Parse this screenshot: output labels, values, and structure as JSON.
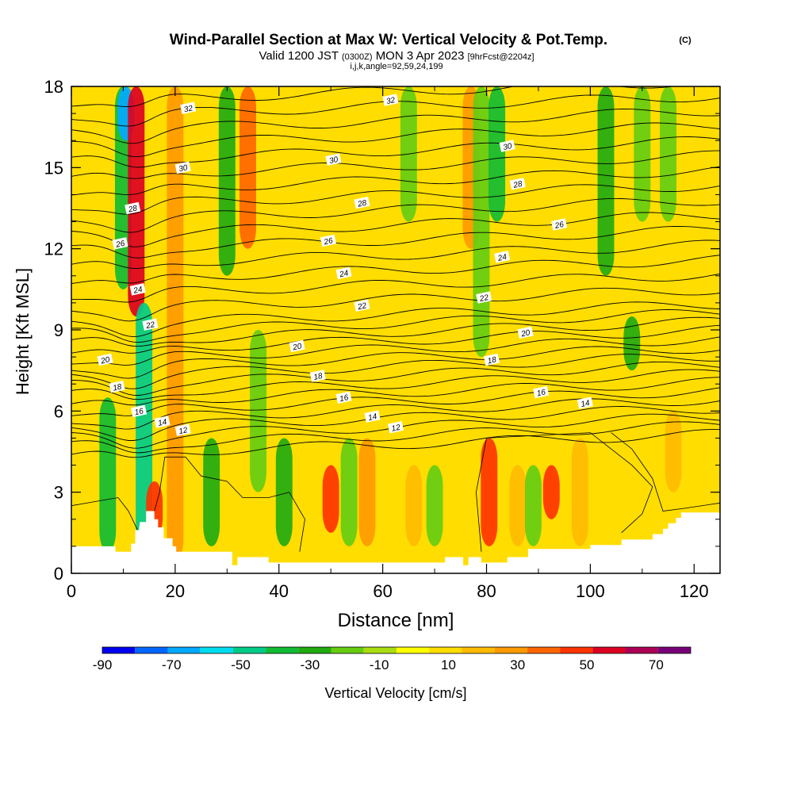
{
  "chart_data": {
    "type": "heatmap",
    "title": "Wind-Parallel Section at Max W: Vertical Velocity & Pot.Temp.",
    "title_mark": "(C)",
    "subtitle": {
      "valid": "Valid 1200 JST",
      "utc": "(0300Z)",
      "date": "MON 3 Apr 2023",
      "fcst": "[9hrFcst@2204z]"
    },
    "params": "i,j,k,angle=92,59,24,199",
    "xlabel": "Distance [nm]",
    "ylabel": "Height [Kft MSL]",
    "xlim": [
      0,
      125
    ],
    "ylim": [
      0,
      18
    ],
    "xticks": [
      "0",
      "20",
      "40",
      "60",
      "80",
      "100",
      "120"
    ],
    "yticks": [
      "0",
      "3",
      "6",
      "9",
      "12",
      "15",
      "18"
    ],
    "background_w": 5,
    "w_columns": [
      {
        "x": 7,
        "w": -35,
        "low": 0.8,
        "high": 6.5
      },
      {
        "x": 10,
        "w": -40,
        "low": 10.5,
        "high": 18
      },
      {
        "x": 10.5,
        "w": -65,
        "low": 16,
        "high": 18
      },
      {
        "x": 12.5,
        "w": 55,
        "low": 9.5,
        "high": 18
      },
      {
        "x": 14,
        "w": -45,
        "low": 1,
        "high": 10
      },
      {
        "x": 16,
        "w": 45,
        "low": 1.3,
        "high": 3.4
      },
      {
        "x": 20,
        "w": 25,
        "low": 0.5,
        "high": 18
      },
      {
        "x": 27,
        "w": -30,
        "low": 1,
        "high": 5
      },
      {
        "x": 30,
        "w": -25,
        "low": 11,
        "high": 18
      },
      {
        "x": 34,
        "w": 35,
        "low": 12,
        "high": 18
      },
      {
        "x": 36,
        "w": -15,
        "low": 3,
        "high": 9
      },
      {
        "x": 41,
        "w": -25,
        "low": 1,
        "high": 5
      },
      {
        "x": 50,
        "w": 45,
        "low": 1.5,
        "high": 4
      },
      {
        "x": 53.5,
        "w": -15,
        "low": 1,
        "high": 5
      },
      {
        "x": 57,
        "w": 25,
        "low": 1,
        "high": 5
      },
      {
        "x": 65,
        "w": -15,
        "low": 13,
        "high": 18
      },
      {
        "x": 66,
        "w": 15,
        "low": 1,
        "high": 4
      },
      {
        "x": 70,
        "w": -15,
        "low": 1,
        "high": 4
      },
      {
        "x": 77,
        "w": 25,
        "low": 12,
        "high": 18
      },
      {
        "x": 79,
        "w": -20,
        "low": 8,
        "high": 18
      },
      {
        "x": 80.5,
        "w": 45,
        "low": 1,
        "high": 5
      },
      {
        "x": 82,
        "w": -35,
        "low": 13,
        "high": 18
      },
      {
        "x": 86,
        "w": 15,
        "low": 1,
        "high": 4
      },
      {
        "x": 89,
        "w": -15,
        "low": 1,
        "high": 4
      },
      {
        "x": 92.5,
        "w": 45,
        "low": 2,
        "high": 4
      },
      {
        "x": 98,
        "w": 15,
        "low": 1,
        "high": 5
      },
      {
        "x": 103,
        "w": -25,
        "low": 11,
        "high": 18
      },
      {
        "x": 108,
        "w": -25,
        "low": 7.5,
        "high": 9.5
      },
      {
        "x": 110,
        "w": -20,
        "low": 13,
        "high": 18
      },
      {
        "x": 115,
        "w": -15,
        "low": 13,
        "high": 18
      },
      {
        "x": 116,
        "w": 15,
        "low": 3,
        "high": 6
      }
    ],
    "theta_labels": [
      {
        "value": "32",
        "x": 22.5,
        "y": 17.2
      },
      {
        "value": "32",
        "x": 61.5,
        "y": 17.5
      },
      {
        "value": "30",
        "x": 21.5,
        "y": 15
      },
      {
        "value": "30",
        "x": 50.5,
        "y": 15.3
      },
      {
        "value": "30",
        "x": 84,
        "y": 15.8
      },
      {
        "value": "28",
        "x": 11.8,
        "y": 13.5
      },
      {
        "value": "28",
        "x": 56,
        "y": 13.7
      },
      {
        "value": "28",
        "x": 86,
        "y": 14.4
      },
      {
        "value": "26",
        "x": 9.4,
        "y": 12.2
      },
      {
        "value": "26",
        "x": 49.5,
        "y": 12.3
      },
      {
        "value": "26",
        "x": 94,
        "y": 12.9
      },
      {
        "value": "24",
        "x": 12.8,
        "y": 10.5
      },
      {
        "value": "24",
        "x": 52.5,
        "y": 11.1
      },
      {
        "value": "24",
        "x": 83,
        "y": 11.7
      },
      {
        "value": "22",
        "x": 15.2,
        "y": 9.2
      },
      {
        "value": "22",
        "x": 56,
        "y": 9.9
      },
      {
        "value": "22",
        "x": 79.5,
        "y": 10.2
      },
      {
        "value": "20",
        "x": 6.5,
        "y": 7.9
      },
      {
        "value": "20",
        "x": 43.5,
        "y": 8.4
      },
      {
        "value": "20",
        "x": 87.5,
        "y": 8.9
      },
      {
        "value": "18",
        "x": 8.8,
        "y": 6.9
      },
      {
        "value": "18",
        "x": 47.5,
        "y": 7.3
      },
      {
        "value": "18",
        "x": 81,
        "y": 7.9
      },
      {
        "value": "16",
        "x": 13,
        "y": 6
      },
      {
        "value": "16",
        "x": 52.5,
        "y": 6.5
      },
      {
        "value": "16",
        "x": 90.5,
        "y": 6.7
      },
      {
        "value": "14",
        "x": 17.5,
        "y": 5.6
      },
      {
        "value": "14",
        "x": 58,
        "y": 5.8
      },
      {
        "value": "14",
        "x": 99,
        "y": 6.3
      },
      {
        "value": "12",
        "x": 21.5,
        "y": 5.3
      },
      {
        "value": "12",
        "x": 62.5,
        "y": 5.4
      }
    ],
    "terrain": [
      [
        0,
        1
      ],
      [
        8.5,
        1
      ],
      [
        8.5,
        0.8
      ],
      [
        11.5,
        0.8
      ],
      [
        11.5,
        1.1
      ],
      [
        12.3,
        1.1
      ],
      [
        12.3,
        1.6
      ],
      [
        13,
        1.6
      ],
      [
        13.2,
        1.9
      ],
      [
        14.4,
        1.9
      ],
      [
        14.4,
        2.3
      ],
      [
        16,
        2.3
      ],
      [
        16,
        2.0
      ],
      [
        16.7,
        2.0
      ],
      [
        16.7,
        1.7
      ],
      [
        17.8,
        1.7
      ],
      [
        17.8,
        1.3
      ],
      [
        19.5,
        1.3
      ],
      [
        19.5,
        1.0
      ],
      [
        20.2,
        1.0
      ],
      [
        20.2,
        0.8
      ],
      [
        25,
        0.8
      ],
      [
        30,
        0.8
      ],
      [
        31,
        0.8
      ],
      [
        31,
        0.3
      ],
      [
        32,
        0.3
      ],
      [
        32,
        0.6
      ],
      [
        38,
        0.6
      ],
      [
        38,
        0.4
      ],
      [
        42,
        0.4
      ],
      [
        60,
        0.4
      ],
      [
        72,
        0.4
      ],
      [
        72,
        0.6
      ],
      [
        75.5,
        0.6
      ],
      [
        75.5,
        0.3
      ],
      [
        76.5,
        0.3
      ],
      [
        76.5,
        0.6
      ],
      [
        79,
        0.6
      ],
      [
        79,
        0.4
      ],
      [
        84,
        0.4
      ],
      [
        84,
        0.6
      ],
      [
        88,
        0.6
      ],
      [
        88,
        0.9
      ],
      [
        100,
        0.9
      ],
      [
        100,
        1.05
      ],
      [
        106,
        1.05
      ],
      [
        106,
        1.25
      ],
      [
        112,
        1.25
      ],
      [
        112,
        1.45
      ],
      [
        114,
        1.45
      ],
      [
        114,
        1.65
      ],
      [
        115,
        1.65
      ],
      [
        115,
        1.85
      ],
      [
        116.5,
        1.85
      ],
      [
        116.5,
        2.05
      ],
      [
        117.5,
        2.05
      ],
      [
        117.5,
        2.25
      ],
      [
        125,
        2.25
      ]
    ],
    "colorbar": {
      "label": "Vertical Velocity [cm/s]",
      "ticks": [
        "-90",
        "-70",
        "-50",
        "-30",
        "-10",
        "10",
        "30",
        "50",
        "70"
      ],
      "bounds": [
        -90,
        80
      ],
      "colors": [
        "#0000ee",
        "#0066ff",
        "#00aaff",
        "#00ddee",
        "#00cc88",
        "#11bb33",
        "#22aa11",
        "#66cc11",
        "#aadd11",
        "#ffff00",
        "#ffdd00",
        "#ffbb00",
        "#ff9900",
        "#ff6600",
        "#ff3300",
        "#dd0022",
        "#aa0055",
        "#770077"
      ]
    }
  }
}
